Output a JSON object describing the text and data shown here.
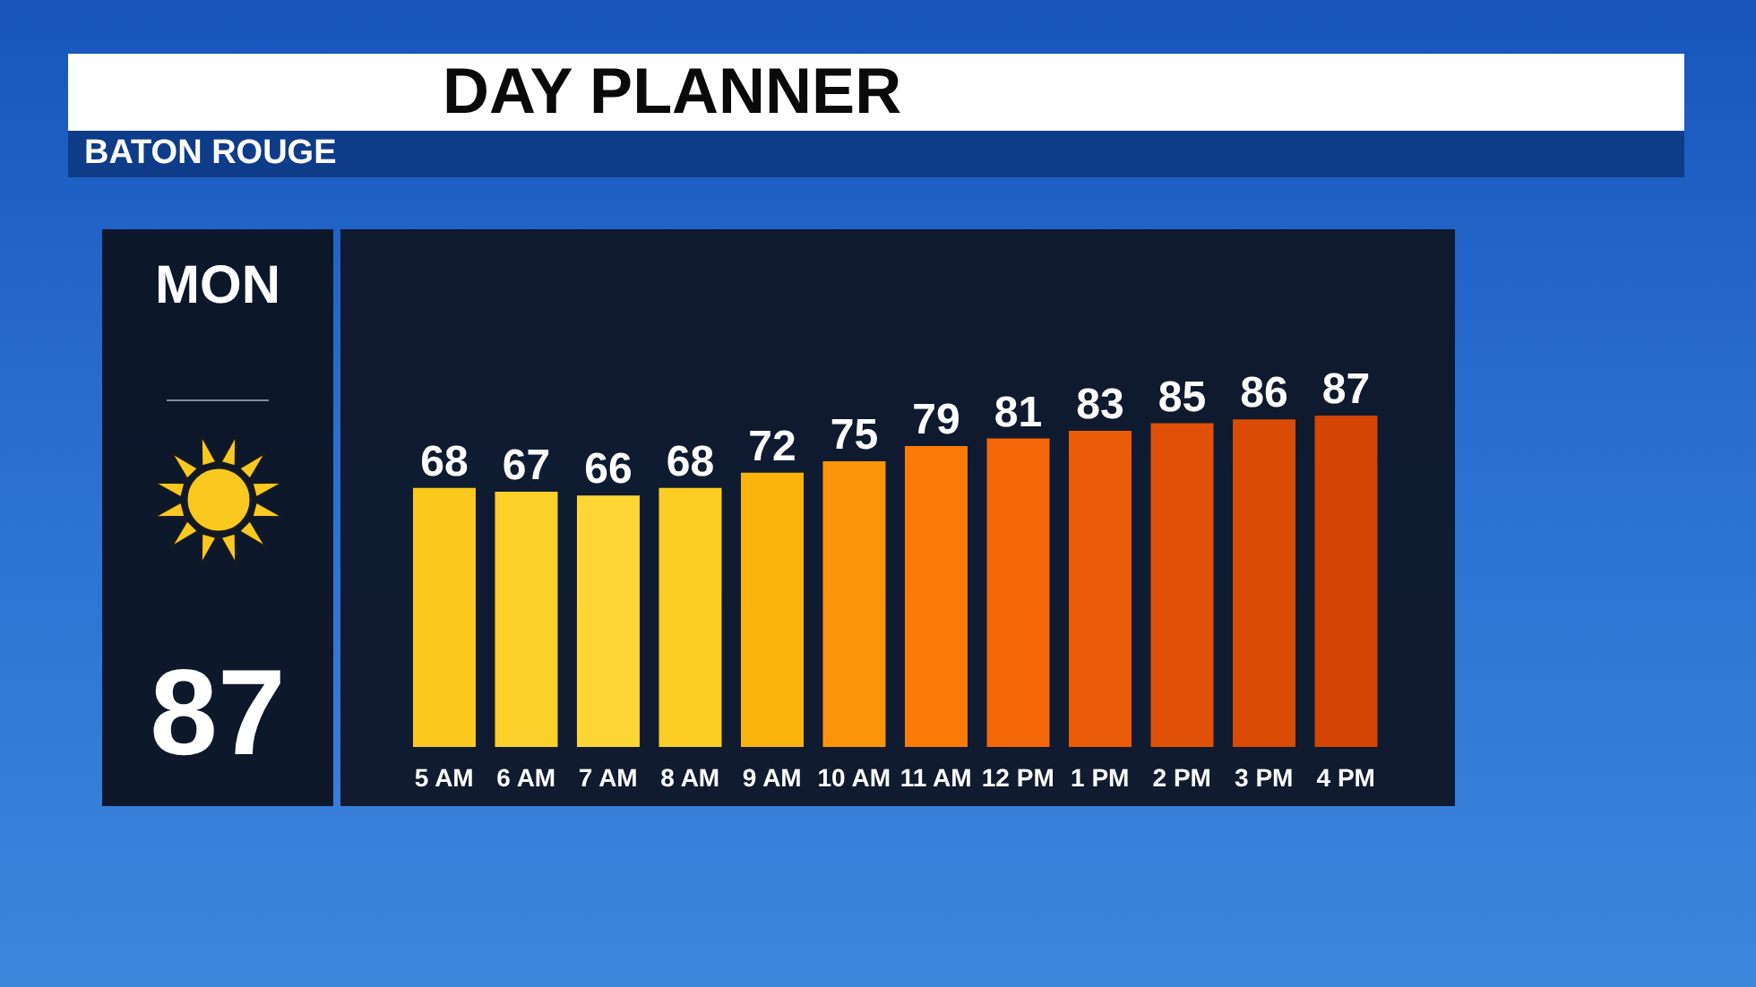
{
  "chart_data": {
    "type": "bar",
    "title": "DAY PLANNER",
    "subtitle": "BATON ROUGE",
    "annotations": [
      "MON",
      "87"
    ],
    "categories": [
      "5 AM",
      "6 AM",
      "7 AM",
      "8 AM",
      "9 AM",
      "10 AM",
      "11 AM",
      "12 PM",
      "1 PM",
      "2 PM",
      "3 PM",
      "4 PM"
    ],
    "values": [
      68,
      67,
      66,
      68,
      72,
      75,
      79,
      81,
      83,
      85,
      86,
      87
    ],
    "colors": [
      "#fbc91e",
      "#fcd02a",
      "#fdd634",
      "#fccd25",
      "#fbb40b",
      "#fb9408",
      "#fa7a07",
      "#f46708",
      "#e95b08",
      "#e05107",
      "#da4b06",
      "#d34405"
    ],
    "data_labels": true,
    "tick_labels": "x"
  }
}
